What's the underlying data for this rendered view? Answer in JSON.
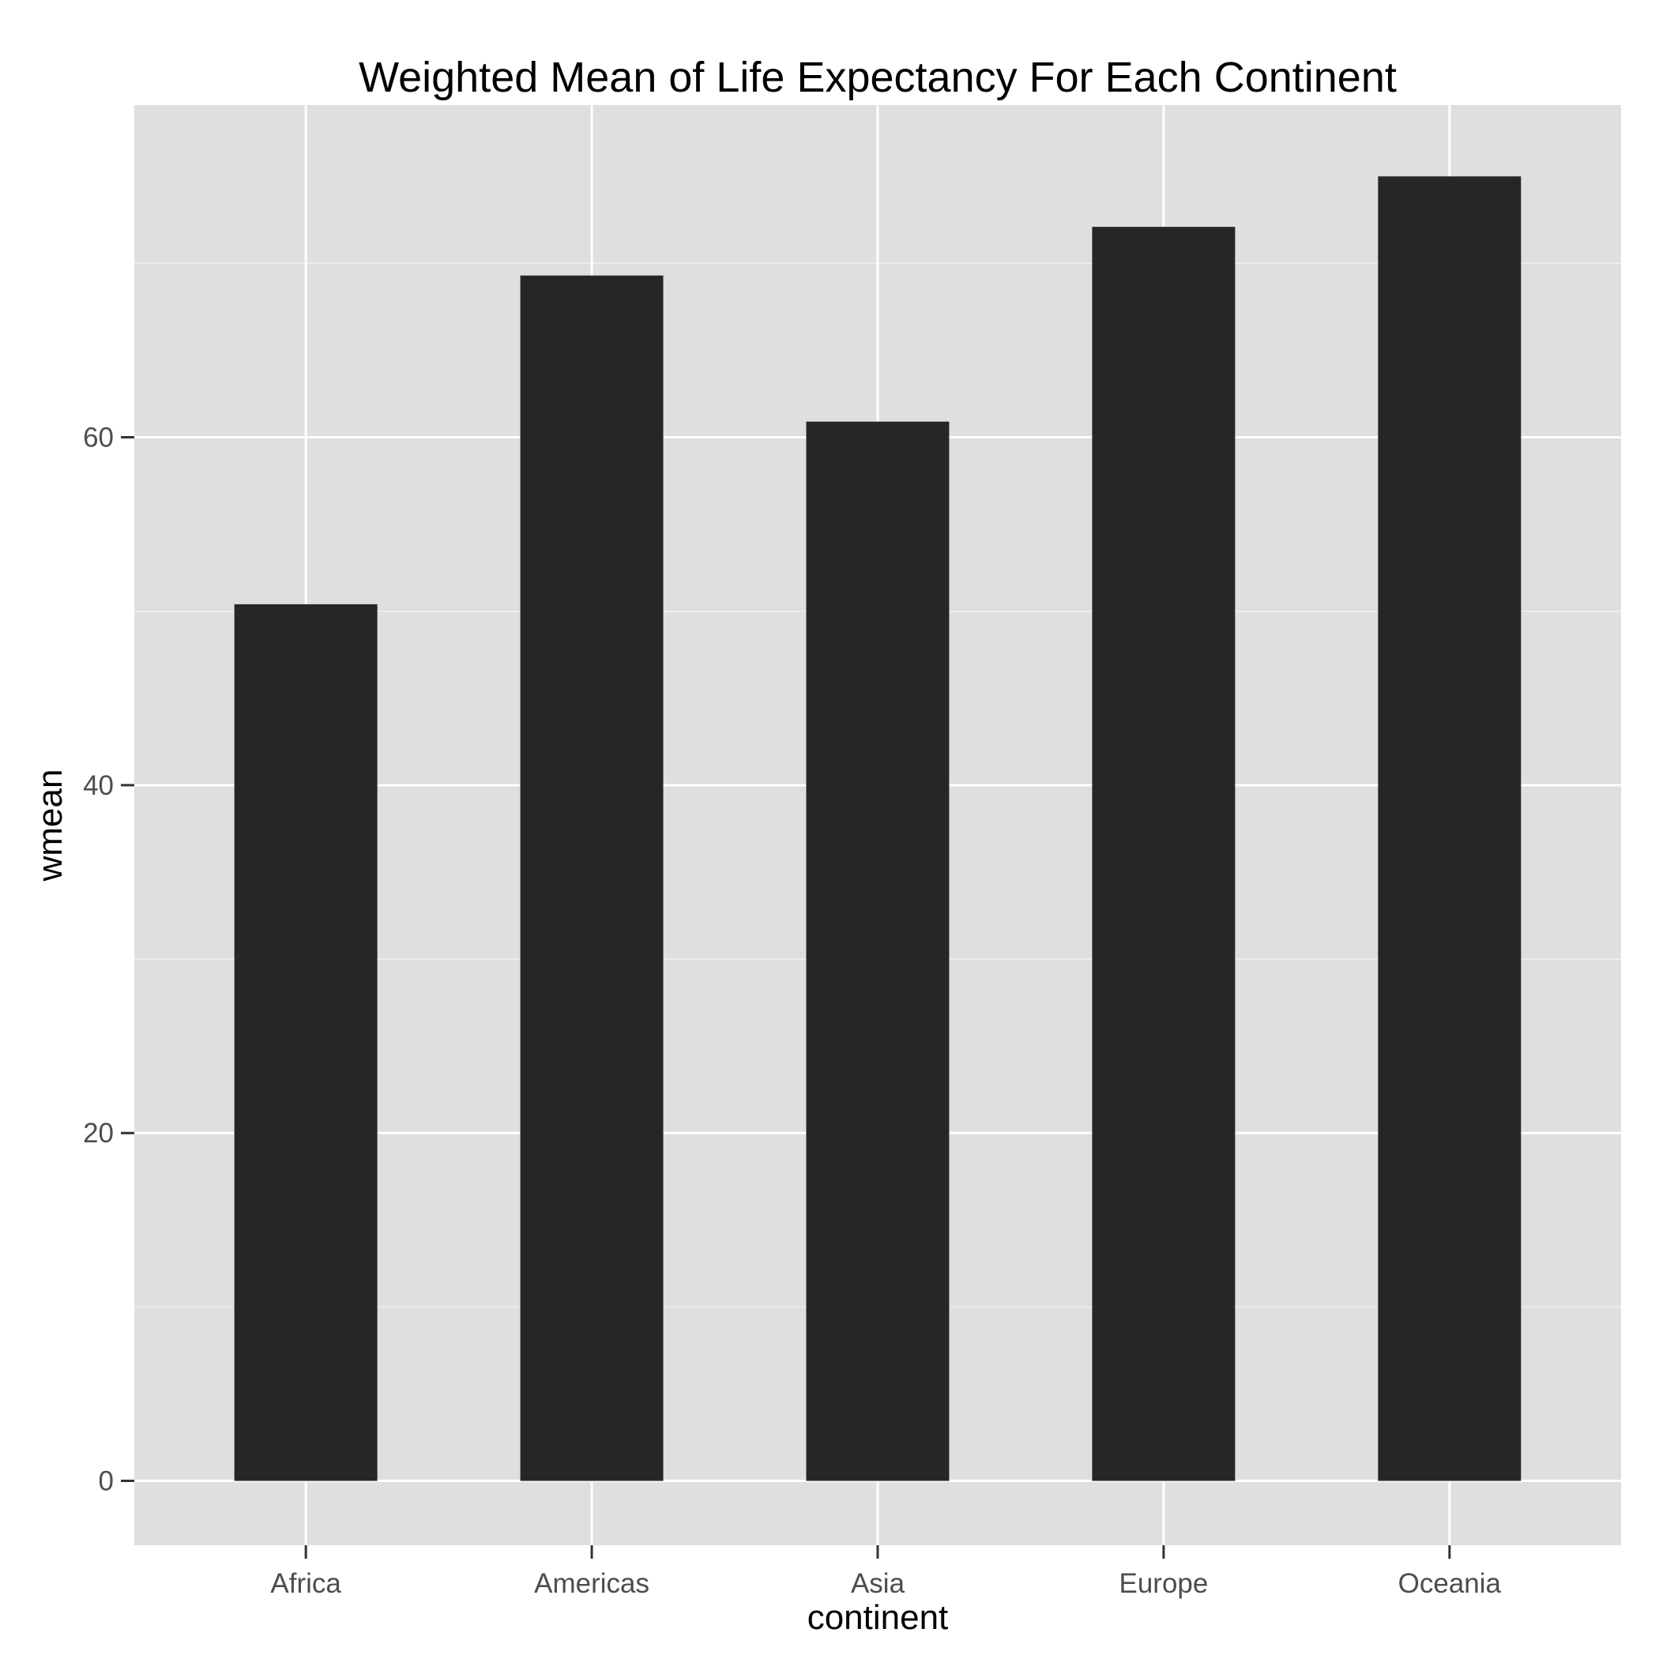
{
  "chart_data": {
    "type": "bar",
    "title": "Weighted Mean of Life Expectancy For Each Continent",
    "xlabel": "continent",
    "ylabel": "wmean",
    "categories": [
      "Africa",
      "Americas",
      "Asia",
      "Europe",
      "Oceania"
    ],
    "values": [
      50.4,
      69.3,
      60.9,
      72.1,
      75.0
    ],
    "ylim": [
      -3.7,
      79.1
    ],
    "yticks": [
      0,
      20,
      40,
      60
    ],
    "ytick_labels": [
      "0",
      "20",
      "40",
      "60"
    ],
    "grid": true,
    "legend": "none",
    "colors": {
      "panel": "#dfdfdf",
      "grid_major": "#ffffff",
      "grid_minor": "#f0f0f0",
      "bar": "#262626",
      "tick": "#333333",
      "tick_label": "#4d4d4d"
    }
  }
}
